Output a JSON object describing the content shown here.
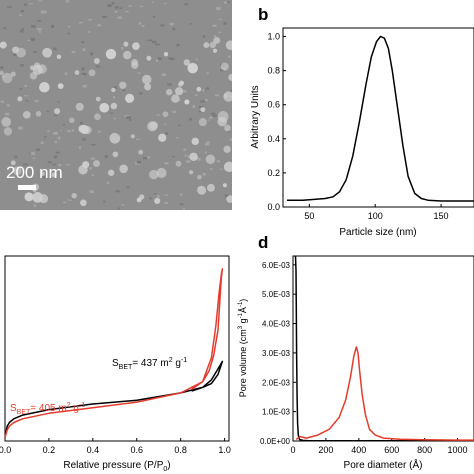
{
  "panels": {
    "a": {
      "scale_text": "200 nm",
      "particle_color": "#d0d0d0",
      "background_color": "#8e8e8e"
    },
    "b": {
      "letter": "b"
    },
    "c": {
      "letter": ""
    },
    "d": {
      "letter": "d"
    }
  },
  "chart_data": [
    {
      "type": "line",
      "panel": "b",
      "xlabel": "Particle size (nm)",
      "ylabel": "Arbitrary Units",
      "xlim": [
        30,
        175
      ],
      "ylim": [
        0,
        1.05
      ],
      "xticks": [
        50,
        100,
        150
      ],
      "yticks": [
        0.0,
        0.2,
        0.4,
        0.6,
        0.8,
        1.0
      ],
      "ytick_labels": [
        "0.0",
        "0.2",
        "0.4",
        "0.6",
        "0.8",
        "1.0"
      ],
      "grid": false,
      "series": [
        {
          "color": "#000000",
          "x": [
            33,
            45,
            55,
            62,
            68,
            73,
            78,
            83,
            88,
            93,
            97,
            101,
            104,
            107,
            110,
            113,
            117,
            121,
            125,
            130,
            135,
            140,
            150,
            160,
            175
          ],
          "y": [
            0.04,
            0.04,
            0.045,
            0.05,
            0.06,
            0.09,
            0.16,
            0.3,
            0.5,
            0.72,
            0.88,
            0.97,
            1.0,
            0.99,
            0.93,
            0.8,
            0.58,
            0.36,
            0.18,
            0.08,
            0.05,
            0.04,
            0.035,
            0.035,
            0.035
          ]
        }
      ]
    },
    {
      "type": "line",
      "panel": "c",
      "xlabel": "Relative pressure (P/P0)",
      "xlabel_main": "Relative pressure (P/P",
      "xlabel_sub": "0",
      "xlabel_close": ")",
      "xlim": [
        0,
        1.02
      ],
      "ylim": [
        0,
        1
      ],
      "xticks": [
        0.0,
        0.2,
        0.4,
        0.6,
        0.8,
        1.0
      ],
      "xtick_labels": [
        "0.0",
        "0.2",
        "0.4",
        "0.6",
        "0.8",
        "1.0"
      ],
      "y_axis_labels_visible": false,
      "grid": false,
      "annotations": [
        {
          "id": "black",
          "prefix": "S",
          "sub": "BET",
          "value": "= 437 m",
          "sup": "2",
          "unit": " g",
          "sup2": "-1",
          "color": "#000000"
        },
        {
          "id": "red",
          "prefix": "S",
          "sub": "BET",
          "value": "= 405 m",
          "sup": "2",
          "unit": " g",
          "sup2": "-1",
          "color": "#e53b2c"
        }
      ],
      "series": [
        {
          "color": "#000000",
          "x": [
            0.0,
            0.01,
            0.02,
            0.04,
            0.08,
            0.2,
            0.4,
            0.6,
            0.8,
            0.9,
            0.94,
            0.97,
            0.99,
            0.97,
            0.94,
            0.9,
            0.85
          ],
          "y": [
            0.02,
            0.08,
            0.1,
            0.12,
            0.14,
            0.17,
            0.2,
            0.22,
            0.26,
            0.29,
            0.33,
            0.39,
            0.43,
            0.36,
            0.31,
            0.29,
            0.27
          ]
        },
        {
          "color": "#e53b2c",
          "x": [
            0.0,
            0.01,
            0.02,
            0.04,
            0.08,
            0.2,
            0.4,
            0.6,
            0.8,
            0.9,
            0.94,
            0.96,
            0.975,
            0.985,
            0.99,
            0.985,
            0.97,
            0.95,
            0.93,
            0.9,
            0.85
          ],
          "y": [
            0.02,
            0.06,
            0.08,
            0.1,
            0.12,
            0.15,
            0.18,
            0.21,
            0.26,
            0.32,
            0.45,
            0.62,
            0.8,
            0.9,
            0.93,
            0.88,
            0.6,
            0.46,
            0.38,
            0.32,
            0.28
          ]
        }
      ]
    },
    {
      "type": "line",
      "panel": "d",
      "xlabel": "Pore diameter (Å)",
      "ylabel": "Pore volume (cm3 g-1Å-1)",
      "ylabel_parts": [
        "Pore volume (cm",
        "3",
        " g",
        "-1",
        "Å",
        "-1",
        ")"
      ],
      "xlim": [
        0,
        1100
      ],
      "ylim": [
        0,
        0.0063
      ],
      "xticks": [
        0,
        200,
        400,
        600,
        800,
        1000
      ],
      "xtick_labels": [
        "0",
        "200",
        "400",
        "600",
        "800",
        "1000"
      ],
      "yticks": [
        0.0,
        0.001,
        0.002,
        0.003,
        0.004,
        0.005,
        0.006
      ],
      "ytick_labels": [
        "0.0E+00",
        "1.0E-03",
        "2.0E-03",
        "3.0E-03",
        "4.0E-03",
        "5.0E-03",
        "6.0E-03"
      ],
      "grid": false,
      "series": [
        {
          "color": "#000000",
          "x": [
            15,
            18,
            20,
            22,
            25,
            28,
            32,
            40,
            60,
            100,
            200,
            400,
            600,
            800,
            1000,
            1100
          ],
          "y": [
            0.0063,
            0.0058,
            0.0045,
            0.003,
            0.0015,
            0.0006,
            0.0002,
            5e-05,
            2e-05,
            1e-05,
            1e-05,
            1e-05,
            1e-05,
            1e-05,
            1e-05,
            1e-05
          ]
        },
        {
          "color": "#e53b2c",
          "x": [
            20,
            30,
            45,
            80,
            150,
            220,
            280,
            320,
            350,
            370,
            385,
            395,
            405,
            420,
            440,
            465,
            500,
            550,
            650,
            800,
            1000,
            1100
          ],
          "y": [
            5e-05,
            0.0001,
            0.00015,
            0.0001,
            0.0002,
            0.0004,
            0.0008,
            0.0014,
            0.0022,
            0.0029,
            0.0032,
            0.003,
            0.0024,
            0.0016,
            0.0009,
            0.0004,
            0.0002,
            0.0001,
            6e-05,
            4e-05,
            3e-05,
            3e-05
          ]
        }
      ]
    }
  ]
}
